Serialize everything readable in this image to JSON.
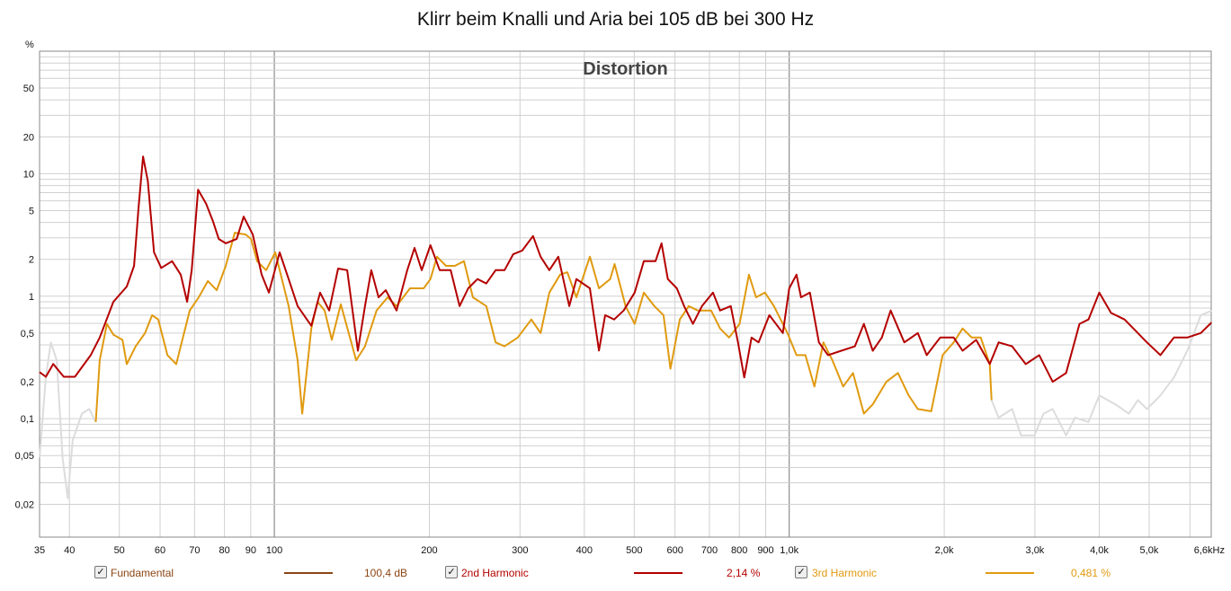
{
  "title": "Klirr beim Knalli und Aria bei 105 dB bei 300 Hz",
  "chart_data": {
    "type": "line",
    "title": "Klirr beim Knalli und Aria bei 105 dB bei 300 Hz",
    "subtitle": "Distortion",
    "ylabel": "%",
    "xscale": "log",
    "yscale": "log",
    "xlim": [
      35,
      6600
    ],
    "ylim": [
      0.0108,
      100
    ],
    "x_ticks": [
      {
        "v": 35,
        "l": "35"
      },
      {
        "v": 40,
        "l": "40"
      },
      {
        "v": 50,
        "l": "50"
      },
      {
        "v": 60,
        "l": "60"
      },
      {
        "v": 70,
        "l": "70"
      },
      {
        "v": 80,
        "l": "80"
      },
      {
        "v": 90,
        "l": "90"
      },
      {
        "v": 100,
        "l": "100"
      },
      {
        "v": 200,
        "l": "200"
      },
      {
        "v": 300,
        "l": "300"
      },
      {
        "v": 400,
        "l": "400"
      },
      {
        "v": 500,
        "l": "500"
      },
      {
        "v": 600,
        "l": "600"
      },
      {
        "v": 700,
        "l": "700"
      },
      {
        "v": 800,
        "l": "800"
      },
      {
        "v": 900,
        "l": "900"
      },
      {
        "v": 1000,
        "l": "1,0k"
      },
      {
        "v": 2000,
        "l": "2,0k"
      },
      {
        "v": 3000,
        "l": "3,0k"
      },
      {
        "v": 4000,
        "l": "4,0k"
      },
      {
        "v": 5000,
        "l": "5,0k"
      },
      {
        "v": 6600,
        "l": "6,6kHz"
      }
    ],
    "y_ticks": [
      {
        "v": 50,
        "l": "50"
      },
      {
        "v": 20,
        "l": "20"
      },
      {
        "v": 10,
        "l": "10"
      },
      {
        "v": 5,
        "l": "5"
      },
      {
        "v": 2,
        "l": "2"
      },
      {
        "v": 1,
        "l": "1"
      },
      {
        "v": 0.5,
        "l": "0,5"
      },
      {
        "v": 0.2,
        "l": "0,2"
      },
      {
        "v": 0.1,
        "l": "0,1"
      },
      {
        "v": 0.05,
        "l": "0,05"
      },
      {
        "v": 0.02,
        "l": "0,02"
      }
    ],
    "grid": true,
    "legend_placement": "bottom",
    "series": [
      {
        "name": "Fundamental",
        "color": "#8b4513",
        "checked": true,
        "value": "100,4 dB",
        "x": [],
        "y": []
      },
      {
        "name": "2nd Harmonic",
        "color": "#b40000",
        "checked": true,
        "value": "2,14 %",
        "x": [
          35,
          36,
          37.2,
          39,
          41,
          44,
          45.8,
          48.7,
          51.7,
          53.4,
          54.5,
          55.6,
          56.8,
          58.4,
          60.3,
          63.3,
          65.8,
          67.7,
          69.1,
          71.1,
          73.7,
          76,
          78,
          80.5,
          84.5,
          87.2,
          90.8,
          94.5,
          97.6,
          102.4,
          106.6,
          111,
          118,
          122.7,
          127.8,
          133,
          138.5,
          145.3,
          150,
          154.3,
          159.4,
          164.6,
          172.7,
          181.2,
          187.2,
          193.3,
          201,
          209.5,
          220,
          229,
          238,
          248,
          258,
          269,
          280,
          291,
          303,
          318,
          329,
          342,
          356,
          374,
          386,
          410,
          427,
          439,
          457,
          477,
          501,
          522,
          550,
          565,
          581,
          605,
          625,
          650,
          677,
          711,
          734,
          770,
          795,
          818,
          845,
          872,
          915,
          972,
          1000,
          1033,
          1054,
          1097,
          1142,
          1189,
          1262,
          1341,
          1396,
          1453,
          1513,
          1574,
          1673,
          1777,
          1849,
          1964,
          2086,
          2171,
          2307,
          2451,
          2551,
          2710,
          2879,
          3058,
          3248,
          3449,
          3662,
          3812,
          4000,
          4217,
          4479,
          4660,
          4950,
          5259,
          5585,
          5931,
          6300,
          6607
        ],
        "y": [
          0.24,
          0.22,
          0.28,
          0.22,
          0.22,
          0.33,
          0.46,
          0.9,
          1.2,
          1.77,
          5.3,
          13.8,
          8.7,
          2.28,
          1.7,
          1.93,
          1.5,
          0.9,
          1.63,
          7.4,
          5.7,
          4.1,
          2.93,
          2.7,
          2.93,
          4.46,
          3.19,
          1.5,
          1.07,
          2.28,
          1.38,
          0.83,
          0.574,
          1.07,
          0.764,
          1.68,
          1.63,
          0.359,
          0.83,
          1.63,
          0.98,
          1.12,
          0.764,
          1.63,
          2.48,
          1.63,
          2.61,
          1.63,
          1.63,
          0.83,
          1.16,
          1.38,
          1.27,
          1.63,
          1.63,
          2.2,
          2.36,
          3.1,
          2.1,
          1.63,
          2.1,
          0.83,
          1.38,
          1.16,
          0.36,
          0.7,
          0.646,
          0.764,
          1.07,
          1.93,
          1.93,
          2.7,
          1.38,
          1.16,
          0.83,
          0.594,
          0.83,
          1.07,
          0.764,
          0.83,
          0.42,
          0.217,
          0.46,
          0.42,
          0.7,
          0.5,
          1.16,
          1.5,
          0.98,
          1.07,
          0.42,
          0.33,
          0.359,
          0.39,
          0.594,
          0.359,
          0.46,
          0.764,
          0.42,
          0.5,
          0.33,
          0.46,
          0.46,
          0.359,
          0.44,
          0.279,
          0.42,
          0.39,
          0.279,
          0.33,
          0.2,
          0.236,
          0.594,
          0.646,
          1.07,
          0.73,
          0.646,
          0.545,
          0.42,
          0.33,
          0.46,
          0.46,
          0.5,
          0.61
        ]
      },
      {
        "name": "3rd Harmonic",
        "color": "#e09a10",
        "checked": true,
        "value": "0,481 %",
        "x": [
          45,
          45.8,
          47.3,
          48.7,
          50.7,
          51.7,
          53.8,
          56.1,
          57.9,
          59.5,
          62,
          64.5,
          68.5,
          71.3,
          74.3,
          77.3,
          80.5,
          83.8,
          88,
          90.1,
          92.6,
          96.4,
          100.4,
          106.6,
          111,
          113.3,
          118,
          121.3,
          125.2,
          129.3,
          134.6,
          144.2,
          150,
          158,
          166,
          172.7,
          183.5,
          195,
          201,
          207,
          215.5,
          224.2,
          233.5,
          243,
          258,
          269,
          280,
          297,
          315.6,
          329,
          342,
          359,
          370.7,
          386,
          410,
          427,
          449,
          458,
          481,
          501,
          522,
          547,
          570,
          588,
          613,
          638,
          664,
          705,
          734,
          764,
          801,
          835,
          862,
          897,
          934,
          992,
          1033,
          1075,
          1119,
          1165,
          1213,
          1273,
          1330,
          1396,
          1453,
          1544,
          1626,
          1706,
          1777,
          1887,
          1986,
          2086,
          2171,
          2261,
          2355,
          2451,
          2471
        ],
        "y": [
          0.094,
          0.3,
          0.594,
          0.485,
          0.44,
          0.279,
          0.39,
          0.5,
          0.7,
          0.646,
          0.33,
          0.279,
          0.764,
          0.98,
          1.33,
          1.12,
          1.77,
          3.3,
          3.19,
          2.93,
          1.93,
          1.63,
          2.28,
          0.83,
          0.3,
          0.11,
          0.545,
          0.9,
          0.764,
          0.44,
          0.86,
          0.3,
          0.39,
          0.764,
          0.98,
          0.83,
          1.16,
          1.16,
          1.38,
          2.1,
          1.77,
          1.77,
          1.93,
          0.98,
          0.83,
          0.42,
          0.39,
          0.46,
          0.646,
          0.5,
          1.07,
          1.5,
          1.57,
          0.98,
          2.1,
          1.16,
          1.38,
          1.83,
          0.83,
          0.594,
          1.07,
          0.83,
          0.7,
          0.256,
          0.646,
          0.83,
          0.764,
          0.764,
          0.545,
          0.46,
          0.594,
          1.5,
          0.98,
          1.07,
          0.83,
          0.5,
          0.33,
          0.33,
          0.183,
          0.42,
          0.3,
          0.183,
          0.236,
          0.11,
          0.131,
          0.2,
          0.236,
          0.155,
          0.12,
          0.115,
          0.33,
          0.42,
          0.545,
          0.46,
          0.46,
          0.279,
          0.142
        ]
      },
      {
        "name": "below-threshold-low",
        "color": "#dcdcdc",
        "x": [
          35,
          36,
          36.8,
          37.8,
          38.8,
          39.7,
          40.6,
          42.3,
          43.7,
          45
        ],
        "y": [
          0.048,
          0.22,
          0.42,
          0.3,
          0.048,
          0.0224,
          0.067,
          0.11,
          0.12,
          0.094
        ]
      },
      {
        "name": "below-threshold-high",
        "color": "#dcdcdc",
        "x": [
          2471,
          2551,
          2710,
          2820,
          2995,
          3118,
          3248,
          3449,
          3591,
          3812,
          4000,
          4300,
          4567,
          4755,
          4950,
          5259,
          5585,
          5931,
          6300,
          6607
        ],
        "y": [
          0.142,
          0.102,
          0.12,
          0.073,
          0.073,
          0.11,
          0.12,
          0.073,
          0.102,
          0.094,
          0.155,
          0.131,
          0.11,
          0.142,
          0.12,
          0.155,
          0.217,
          0.359,
          0.7,
          0.76
        ]
      }
    ]
  }
}
